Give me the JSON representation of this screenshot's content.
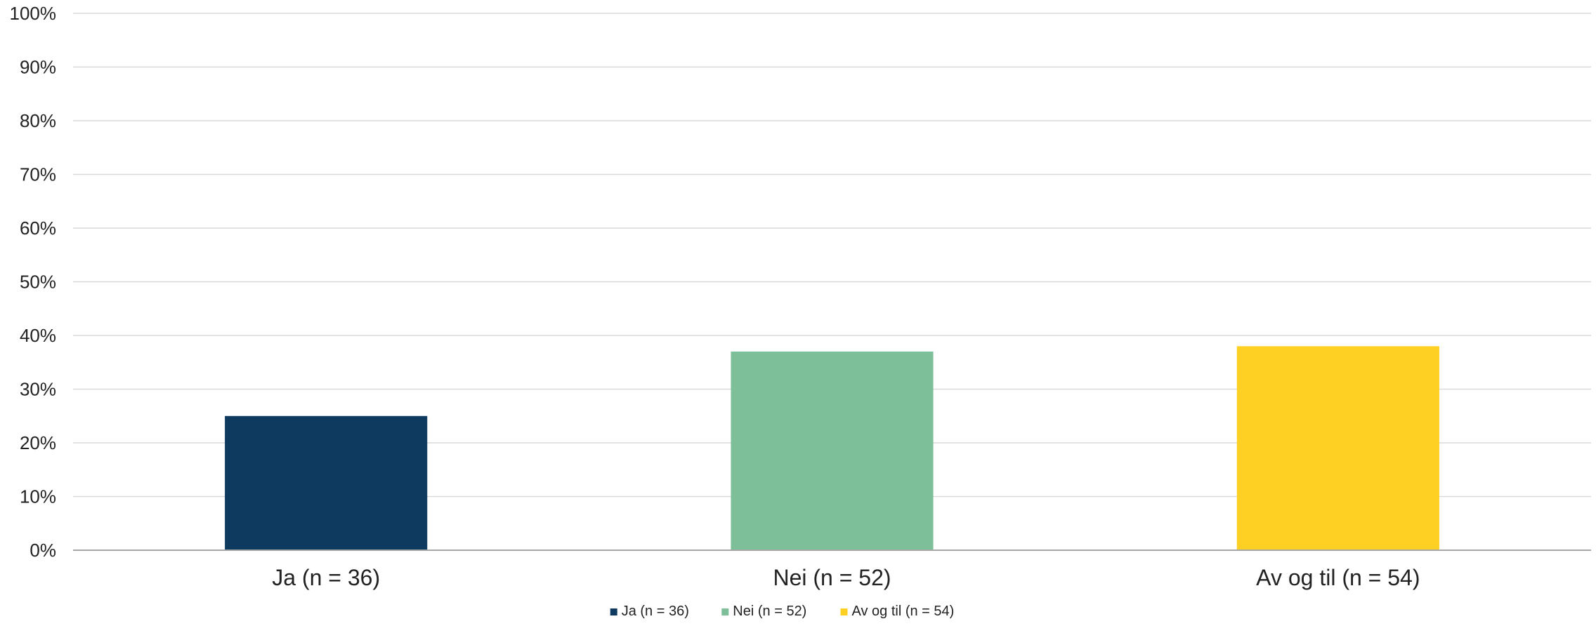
{
  "chart_data": {
    "type": "bar",
    "categories": [
      "Ja (n = 36)",
      "Nei (n = 52)",
      "Av og til (n = 54)"
    ],
    "values": [
      25,
      37,
      38
    ],
    "colors": [
      "#0e3a5f",
      "#7dbf99",
      "#fdd023"
    ],
    "ylim": [
      0,
      100
    ],
    "yticks": [
      "0%",
      "10%",
      "20%",
      "30%",
      "40%",
      "50%",
      "60%",
      "70%",
      "80%",
      "90%",
      "100%"
    ],
    "title": "",
    "xlabel": "",
    "ylabel": "",
    "grid": true,
    "legend": {
      "position": "bottom",
      "entries": [
        "Ja (n = 36)",
        "Nei (n = 52)",
        "Av og til (n = 54)"
      ]
    }
  }
}
